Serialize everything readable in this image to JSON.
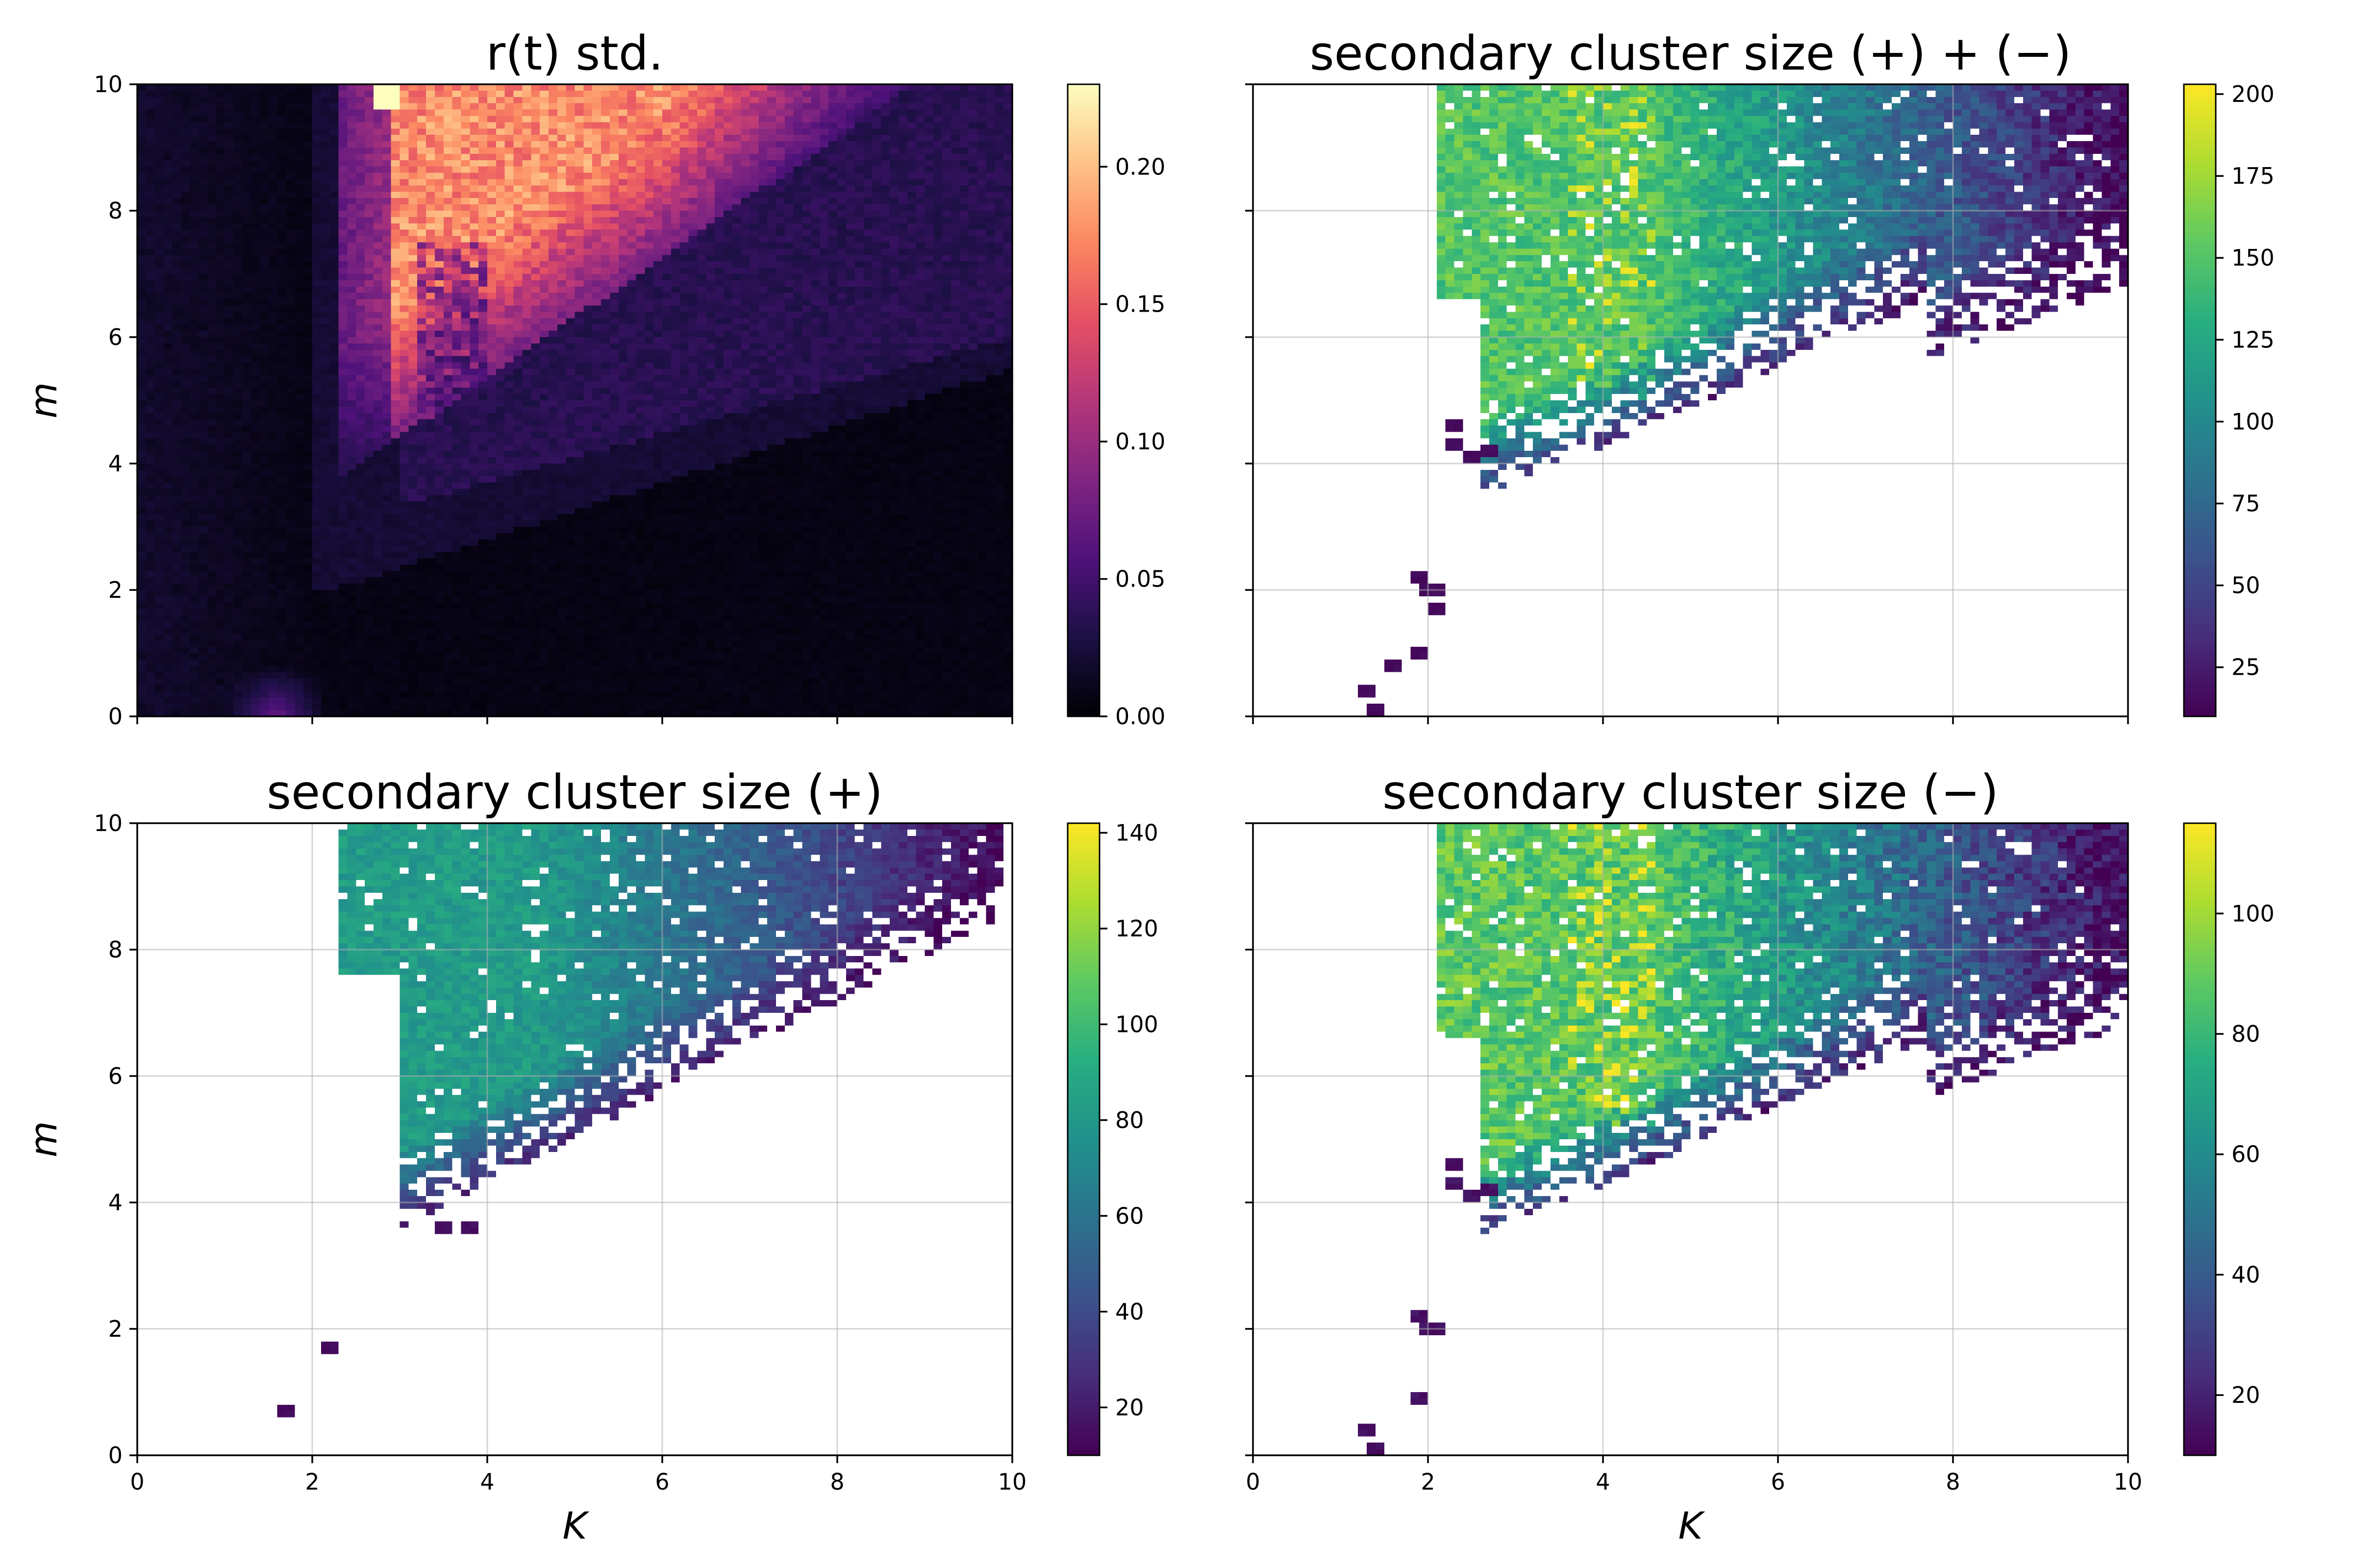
{
  "figure": {
    "layout": "2x2",
    "sharex": true,
    "sharey": true
  },
  "chart_data": [
    {
      "type": "heatmap",
      "title": "r(t) std.",
      "xlabel": "",
      "ylabel": "m",
      "xlim": [
        0,
        10
      ],
      "ylim": [
        0,
        10
      ],
      "xticks": [
        "0",
        "2",
        "4",
        "6",
        "8",
        "10"
      ],
      "yticks": [
        "0",
        "2",
        "4",
        "6",
        "8",
        "10"
      ],
      "show_x_tick_labels": false,
      "show_y_tick_labels": true,
      "grid": false,
      "colormap": "magma",
      "colormap_stops": [
        "#000004",
        "#1c1044",
        "#4f127b",
        "#812581",
        "#b5367a",
        "#e55064",
        "#fb8761",
        "#fec287",
        "#fcfdbf"
      ],
      "colorbar_range": [
        0,
        0.23
      ],
      "colorbar_ticks": [
        "0.00",
        "0.05",
        "0.10",
        "0.15",
        "0.20"
      ],
      "field": "std",
      "seed": 11
    },
    {
      "type": "heatmap",
      "title": "secondary cluster size (+) + (−)",
      "xlabel": "",
      "ylabel": "",
      "xlim": [
        0,
        10
      ],
      "ylim": [
        0,
        10
      ],
      "xticks": [
        "0",
        "2",
        "4",
        "6",
        "8",
        "10"
      ],
      "yticks": [
        "0",
        "2",
        "4",
        "6",
        "8",
        "10"
      ],
      "show_x_tick_labels": false,
      "show_y_tick_labels": false,
      "grid": true,
      "colormap": "viridis",
      "colormap_stops": [
        "#440154",
        "#472d7b",
        "#3b528b",
        "#2c728e",
        "#21918c",
        "#28ae80",
        "#5ec962",
        "#addc30",
        "#fde725"
      ],
      "colorbar_range": [
        10,
        203
      ],
      "colorbar_ticks": [
        "25",
        "50",
        "75",
        "100",
        "125",
        "150",
        "175",
        "200"
      ],
      "field": "both",
      "seed": 23
    },
    {
      "type": "heatmap",
      "title": "secondary cluster size (+)",
      "xlabel": "K",
      "ylabel": "m",
      "xlim": [
        0,
        10
      ],
      "ylim": [
        0,
        10
      ],
      "xticks": [
        "0",
        "2",
        "4",
        "6",
        "8",
        "10"
      ],
      "yticks": [
        "0",
        "2",
        "4",
        "6",
        "8",
        "10"
      ],
      "show_x_tick_labels": true,
      "show_y_tick_labels": true,
      "grid": true,
      "colormap": "viridis",
      "colormap_stops": [
        "#440154",
        "#472d7b",
        "#3b528b",
        "#2c728e",
        "#21918c",
        "#28ae80",
        "#5ec962",
        "#addc30",
        "#fde725"
      ],
      "colorbar_range": [
        10,
        142
      ],
      "colorbar_ticks": [
        "20",
        "40",
        "60",
        "80",
        "100",
        "120",
        "140"
      ],
      "field": "plus",
      "seed": 37
    },
    {
      "type": "heatmap",
      "title": "secondary cluster size (−)",
      "xlabel": "K",
      "ylabel": "",
      "xlim": [
        0,
        10
      ],
      "ylim": [
        0,
        10
      ],
      "xticks": [
        "0",
        "2",
        "4",
        "6",
        "8",
        "10"
      ],
      "yticks": [
        "0",
        "2",
        "4",
        "6",
        "8",
        "10"
      ],
      "show_x_tick_labels": true,
      "show_y_tick_labels": false,
      "grid": true,
      "colormap": "viridis",
      "colormap_stops": [
        "#440154",
        "#472d7b",
        "#3b528b",
        "#2c728e",
        "#21918c",
        "#28ae80",
        "#5ec962",
        "#addc30",
        "#fde725"
      ],
      "colorbar_range": [
        10,
        115
      ],
      "colorbar_ticks": [
        "20",
        "40",
        "60",
        "80",
        "100"
      ],
      "field": "minus",
      "seed": 53
    }
  ]
}
